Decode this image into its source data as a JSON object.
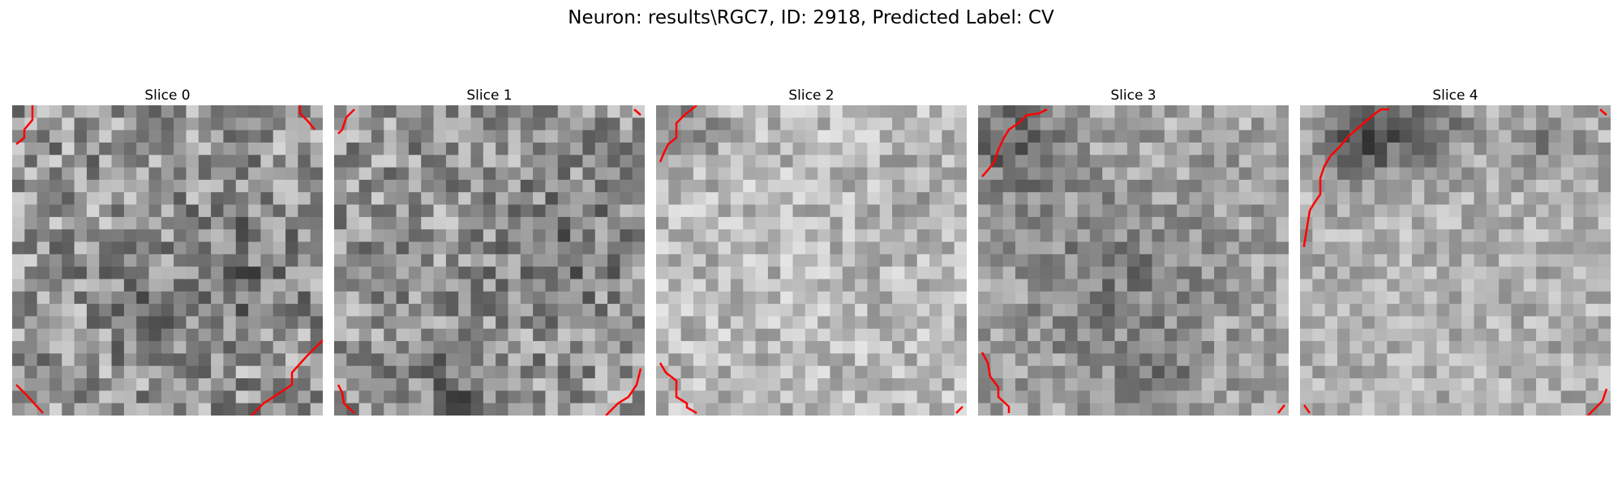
{
  "figure": {
    "title": "Neuron: results\\RGC7, ID: 2918, Predicted Label: CV"
  },
  "slices": [
    {
      "title": "Slice 0"
    },
    {
      "title": "Slice 1"
    },
    {
      "title": "Slice 2"
    },
    {
      "title": "Slice 3"
    },
    {
      "title": "Slice 4"
    }
  ],
  "colors": {
    "background": "#ffffff",
    "contour": "#ff0000",
    "colormap": "grayscale"
  }
}
